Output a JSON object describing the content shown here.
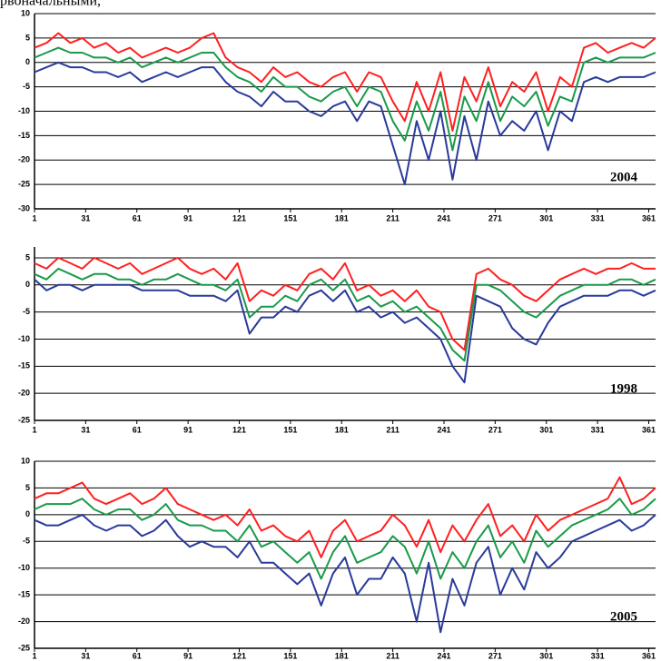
{
  "header_text": "рвоначальными,",
  "chart_data": [
    {
      "type": "line",
      "annotation": "2004",
      "xlim": [
        1,
        365
      ],
      "xticks": [
        1,
        31,
        61,
        91,
        121,
        151,
        181,
        211,
        241,
        271,
        301,
        331,
        361
      ],
      "ylim": [
        -30,
        10
      ],
      "yticks": [
        10,
        5,
        0,
        -5,
        -10,
        -15,
        -20,
        -25,
        -30
      ],
      "grid": true,
      "x": [
        1,
        8,
        15,
        22,
        29,
        36,
        43,
        50,
        57,
        64,
        71,
        78,
        85,
        92,
        99,
        106,
        113,
        120,
        127,
        134,
        141,
        148,
        155,
        162,
        169,
        176,
        183,
        190,
        197,
        204,
        211,
        218,
        225,
        232,
        239,
        246,
        253,
        260,
        267,
        274,
        281,
        288,
        295,
        302,
        309,
        316,
        323,
        330,
        337,
        344,
        351,
        358,
        365
      ],
      "series": [
        {
          "color": "#ff2020",
          "values": [
            3,
            4,
            6,
            4,
            5,
            3,
            4,
            2,
            3,
            1,
            2,
            3,
            2,
            3,
            5,
            6,
            1,
            -1,
            -2,
            -4,
            -1,
            -3,
            -2,
            -4,
            -5,
            -3,
            -2,
            -6,
            -2,
            -3,
            -8,
            -12,
            -4,
            -10,
            -2,
            -14,
            -3,
            -8,
            -1,
            -9,
            -4,
            -6,
            -2,
            -10,
            -3,
            -5,
            3,
            4,
            2,
            3,
            4,
            3,
            5
          ]
        },
        {
          "color": "#1a9a4a",
          "values": [
            1,
            2,
            3,
            2,
            2,
            1,
            1,
            0,
            1,
            -1,
            0,
            1,
            0,
            1,
            2,
            2,
            -1,
            -3,
            -4,
            -6,
            -3,
            -5,
            -5,
            -7,
            -8,
            -6,
            -5,
            -9,
            -5,
            -6,
            -12,
            -16,
            -8,
            -14,
            -6,
            -18,
            -7,
            -12,
            -4,
            -12,
            -7,
            -9,
            -6,
            -13,
            -7,
            -8,
            0,
            1,
            0,
            1,
            1,
            1,
            2
          ]
        },
        {
          "color": "#2a3a9a",
          "values": [
            -2,
            -1,
            0,
            -1,
            -1,
            -2,
            -2,
            -3,
            -2,
            -4,
            -3,
            -2,
            -3,
            -2,
            -1,
            -1,
            -4,
            -6,
            -7,
            -9,
            -6,
            -8,
            -8,
            -10,
            -11,
            -9,
            -8,
            -12,
            -8,
            -9,
            -17,
            -25,
            -12,
            -20,
            -10,
            -24,
            -11,
            -20,
            -8,
            -15,
            -12,
            -14,
            -10,
            -18,
            -10,
            -12,
            -4,
            -3,
            -4,
            -3,
            -3,
            -3,
            -2
          ]
        }
      ]
    },
    {
      "type": "line",
      "annotation": "1998",
      "xlim": [
        1,
        365
      ],
      "xticks": [
        1,
        31,
        61,
        91,
        121,
        151,
        181,
        211,
        241,
        271,
        301,
        331,
        361
      ],
      "ylim": [
        -25,
        7
      ],
      "yticks": [
        5,
        0,
        -5,
        -10,
        -15,
        -20,
        -25
      ],
      "grid": true,
      "x": [
        1,
        8,
        15,
        22,
        29,
        36,
        43,
        50,
        57,
        64,
        71,
        78,
        85,
        92,
        99,
        106,
        113,
        120,
        127,
        134,
        141,
        148,
        155,
        162,
        169,
        176,
        183,
        190,
        197,
        204,
        211,
        218,
        225,
        232,
        239,
        246,
        253,
        260,
        267,
        274,
        281,
        288,
        295,
        302,
        309,
        316,
        323,
        330,
        337,
        344,
        351,
        358,
        365
      ],
      "series": [
        {
          "color": "#ff2020",
          "values": [
            4,
            3,
            5,
            4,
            3,
            5,
            4,
            3,
            4,
            2,
            3,
            4,
            5,
            3,
            2,
            3,
            1,
            4,
            -3,
            -1,
            -2,
            0,
            -1,
            2,
            3,
            1,
            4,
            -1,
            0,
            -2,
            -1,
            -3,
            -1,
            -4,
            -5,
            -10,
            -12,
            2,
            3,
            1,
            0,
            -2,
            -3,
            -1,
            1,
            2,
            3,
            2,
            3,
            3,
            4,
            3,
            3
          ]
        },
        {
          "color": "#1a9a4a",
          "values": [
            2,
            1,
            3,
            2,
            1,
            2,
            2,
            1,
            1,
            0,
            1,
            1,
            2,
            1,
            0,
            0,
            -1,
            1,
            -6,
            -4,
            -4,
            -2,
            -3,
            0,
            1,
            -1,
            1,
            -3,
            -2,
            -4,
            -3,
            -5,
            -4,
            -6,
            -8,
            -12,
            -14,
            0,
            0,
            -1,
            -3,
            -5,
            -6,
            -4,
            -2,
            -1,
            0,
            0,
            0,
            1,
            1,
            0,
            1
          ]
        },
        {
          "color": "#2a3a9a",
          "values": [
            1,
            -1,
            0,
            0,
            -1,
            0,
            0,
            0,
            0,
            -1,
            -1,
            -1,
            -1,
            -2,
            -2,
            -2,
            -3,
            -1,
            -9,
            -6,
            -6,
            -4,
            -5,
            -2,
            -1,
            -3,
            -1,
            -5,
            -4,
            -6,
            -5,
            -7,
            -6,
            -8,
            -10,
            -15,
            -18,
            -2,
            -3,
            -4,
            -8,
            -10,
            -11,
            -7,
            -4,
            -3,
            -2,
            -2,
            -2,
            -1,
            -1,
            -2,
            -1
          ]
        }
      ]
    },
    {
      "type": "line",
      "annotation": "2005",
      "xlim": [
        1,
        365
      ],
      "xticks": [
        1,
        31,
        61,
        91,
        121,
        151,
        181,
        211,
        241,
        271,
        301,
        331,
        361
      ],
      "ylim": [
        -25,
        10
      ],
      "yticks": [
        10,
        5,
        0,
        -5,
        -10,
        -15,
        -20,
        -25
      ],
      "grid": true,
      "x": [
        1,
        8,
        15,
        22,
        29,
        36,
        43,
        50,
        57,
        64,
        71,
        78,
        85,
        92,
        99,
        106,
        113,
        120,
        127,
        134,
        141,
        148,
        155,
        162,
        169,
        176,
        183,
        190,
        197,
        204,
        211,
        218,
        225,
        232,
        239,
        246,
        253,
        260,
        267,
        274,
        281,
        288,
        295,
        302,
        309,
        316,
        323,
        330,
        337,
        344,
        351,
        358,
        365
      ],
      "series": [
        {
          "color": "#ff2020",
          "values": [
            3,
            4,
            4,
            5,
            6,
            3,
            2,
            3,
            4,
            2,
            3,
            5,
            2,
            1,
            0,
            -1,
            0,
            -2,
            1,
            -3,
            -2,
            -4,
            -5,
            -3,
            -8,
            -3,
            -1,
            -5,
            -4,
            -3,
            0,
            -2,
            -6,
            -1,
            -7,
            -2,
            -5,
            -1,
            2,
            -4,
            -2,
            -5,
            0,
            -3,
            -1,
            0,
            1,
            2,
            3,
            7,
            2,
            3,
            5
          ]
        },
        {
          "color": "#1a9a4a",
          "values": [
            1,
            2,
            2,
            2,
            3,
            1,
            0,
            1,
            1,
            -1,
            0,
            2,
            -1,
            -2,
            -2,
            -3,
            -3,
            -5,
            -2,
            -6,
            -5,
            -7,
            -9,
            -7,
            -12,
            -7,
            -4,
            -9,
            -8,
            -7,
            -4,
            -6,
            -11,
            -5,
            -12,
            -7,
            -10,
            -5,
            -2,
            -8,
            -5,
            -9,
            -3,
            -6,
            -4,
            -2,
            -1,
            0,
            1,
            3,
            0,
            1,
            3
          ]
        },
        {
          "color": "#2a3a9a",
          "values": [
            -1,
            -2,
            -2,
            -1,
            0,
            -2,
            -3,
            -2,
            -2,
            -4,
            -3,
            -1,
            -4,
            -6,
            -5,
            -6,
            -6,
            -8,
            -5,
            -9,
            -9,
            -11,
            -13,
            -11,
            -17,
            -11,
            -8,
            -15,
            -12,
            -12,
            -8,
            -11,
            -20,
            -9,
            -22,
            -12,
            -17,
            -9,
            -6,
            -15,
            -10,
            -14,
            -7,
            -10,
            -8,
            -5,
            -4,
            -3,
            -2,
            -1,
            -3,
            -2,
            0
          ]
        }
      ]
    }
  ]
}
